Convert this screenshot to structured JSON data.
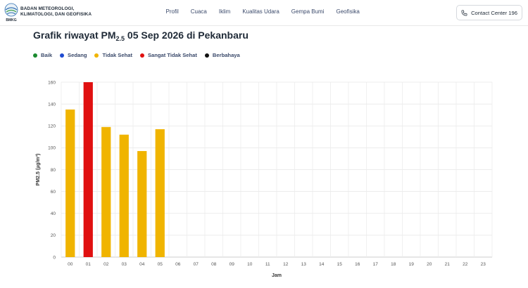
{
  "header": {
    "org_name": "BADAN METEOROLOGI,\nKLIMATOLOGI, DAN GEOFISIKA",
    "logo_text": "BMKG",
    "nav": [
      "Profil",
      "Cuaca",
      "Iklim",
      "Kualitas Udara",
      "Gempa Bumi",
      "Geofisika"
    ],
    "contact_label": "Contact Center 196"
  },
  "page": {
    "title_prefix": "Grafik riwayat PM",
    "title_sub": "2.5",
    "title_suffix": " 05 Sep 2026 di Pekanbaru"
  },
  "legend": [
    {
      "label": "Baik",
      "color": "#1a8a2e"
    },
    {
      "label": "Sedang",
      "color": "#1f4bd1"
    },
    {
      "label": "Tidak Sehat",
      "color": "#f0b400"
    },
    {
      "label": "Sangat Tidak Sehat",
      "color": "#e01010"
    },
    {
      "label": "Berbahaya",
      "color": "#111111"
    }
  ],
  "chart_data": {
    "type": "bar",
    "xlabel": "Jam",
    "ylabel": "PM2.5 (µg/m³)",
    "ylim": [
      0,
      160
    ],
    "yticks": [
      0,
      20,
      40,
      60,
      80,
      100,
      120,
      140,
      160
    ],
    "categories": [
      "00",
      "01",
      "02",
      "03",
      "04",
      "05",
      "06",
      "07",
      "08",
      "09",
      "10",
      "11",
      "12",
      "13",
      "14",
      "15",
      "16",
      "17",
      "18",
      "19",
      "20",
      "21",
      "22",
      "23"
    ],
    "values": [
      135,
      160,
      119,
      112,
      97,
      117,
      null,
      null,
      null,
      null,
      null,
      null,
      null,
      null,
      null,
      null,
      null,
      null,
      null,
      null,
      null,
      null,
      null,
      null
    ],
    "bar_colors": [
      "#f0b400",
      "#e01010",
      "#f0b400",
      "#f0b400",
      "#f0b400",
      "#f0b400"
    ],
    "grid": true
  }
}
